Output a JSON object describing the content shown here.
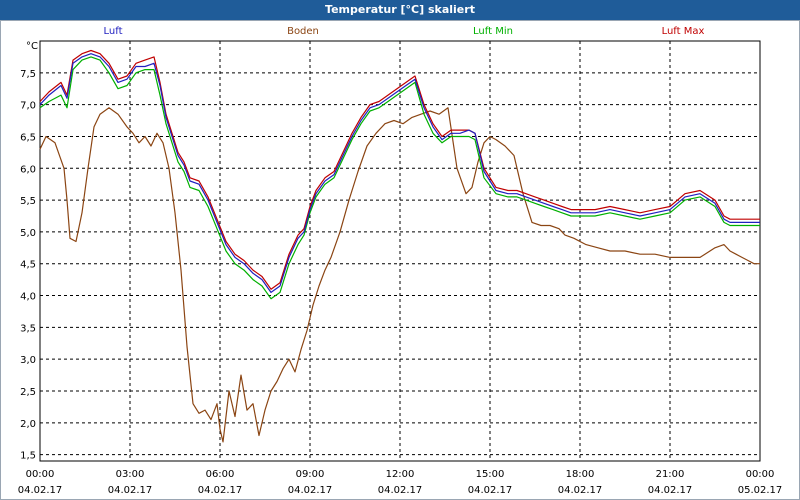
{
  "window": {
    "title": "Temperatur [°C] skaliert"
  },
  "chart_data": {
    "type": "line",
    "title": "Temperatur [°C] skaliert",
    "ylabel": "°C",
    "xlabel": "",
    "ylim": [
      1.4,
      8.0
    ],
    "xlim": [
      0,
      24
    ],
    "grid": true,
    "legend_position": "top",
    "y_ticks": [
      1.5,
      2.0,
      2.5,
      3.0,
      3.5,
      4.0,
      4.5,
      5.0,
      5.5,
      6.0,
      6.5,
      7.0,
      7.5
    ],
    "y_tick_labels": [
      "1,5",
      "2,0",
      "2,5",
      "3,0",
      "3,5",
      "4,0",
      "4,5",
      "5,0",
      "5,5",
      "6,0",
      "6,5",
      "7,0",
      "7,5"
    ],
    "x_ticks": [
      0,
      3,
      6,
      9,
      12,
      15,
      18,
      21,
      24
    ],
    "x_tick_times": [
      "00:00",
      "03:00",
      "06:00",
      "09:00",
      "12:00",
      "15:00",
      "18:00",
      "21:00",
      "00:00"
    ],
    "x_tick_dates": [
      "04.02.17",
      "04.02.17",
      "04.02.17",
      "04.02.17",
      "04.02.17",
      "04.02.17",
      "04.02.17",
      "04.02.17",
      "05.02.17"
    ],
    "series": [
      {
        "name": "Luft",
        "color": "#2020c0",
        "x": [
          0,
          0.3,
          0.7,
          0.9,
          1.1,
          1.4,
          1.7,
          2.0,
          2.3,
          2.6,
          2.9,
          3.2,
          3.5,
          3.8,
          4.0,
          4.2,
          4.4,
          4.6,
          4.8,
          5.0,
          5.3,
          5.6,
          5.9,
          6.2,
          6.5,
          6.8,
          7.1,
          7.4,
          7.7,
          8.0,
          8.3,
          8.6,
          8.8,
          9.0,
          9.2,
          9.5,
          9.8,
          10.1,
          10.4,
          10.7,
          11.0,
          11.3,
          11.6,
          11.9,
          12.2,
          12.5,
          12.8,
          13.1,
          13.4,
          13.7,
          14.0,
          14.3,
          14.5,
          14.8,
          15.2,
          15.6,
          15.9,
          16.2,
          16.5,
          16.8,
          17.1,
          17.4,
          17.7,
          18.0,
          18.5,
          19.0,
          19.5,
          20.0,
          20.5,
          21.0,
          21.5,
          22.0,
          22.5,
          22.8,
          23.0,
          23.2,
          23.4,
          23.6,
          23.8,
          24.0
        ],
        "values": [
          7.0,
          7.15,
          7.3,
          7.1,
          7.65,
          7.75,
          7.8,
          7.75,
          7.6,
          7.35,
          7.4,
          7.6,
          7.6,
          7.65,
          7.3,
          6.8,
          6.5,
          6.2,
          6.05,
          5.8,
          5.75,
          5.5,
          5.15,
          4.8,
          4.6,
          4.5,
          4.35,
          4.25,
          4.05,
          4.15,
          4.6,
          4.9,
          5.0,
          5.35,
          5.6,
          5.8,
          5.9,
          6.2,
          6.5,
          6.75,
          6.95,
          7.0,
          7.1,
          7.2,
          7.3,
          7.4,
          6.95,
          6.65,
          6.45,
          6.55,
          6.55,
          6.6,
          6.55,
          5.95,
          5.65,
          5.6,
          5.6,
          5.55,
          5.5,
          5.45,
          5.4,
          5.35,
          5.3,
          5.3,
          5.3,
          5.35,
          5.3,
          5.25,
          5.3,
          5.35,
          5.55,
          5.6,
          5.45,
          5.2,
          5.15,
          5.15,
          5.15,
          5.15,
          5.15,
          5.15
        ]
      },
      {
        "name": "Boden",
        "color": "#8b4513",
        "x": [
          0,
          0.2,
          0.5,
          0.8,
          0.9,
          1.0,
          1.2,
          1.4,
          1.6,
          1.8,
          2.0,
          2.3,
          2.6,
          2.9,
          3.1,
          3.3,
          3.5,
          3.7,
          3.9,
          4.1,
          4.3,
          4.5,
          4.7,
          4.9,
          5.1,
          5.3,
          5.5,
          5.7,
          5.9,
          6.0,
          6.1,
          6.3,
          6.5,
          6.7,
          6.9,
          7.1,
          7.3,
          7.5,
          7.7,
          7.9,
          8.1,
          8.3,
          8.5,
          8.7,
          8.9,
          9.1,
          9.3,
          9.5,
          9.7,
          10.0,
          10.3,
          10.6,
          10.9,
          11.2,
          11.5,
          11.8,
          12.1,
          12.4,
          12.7,
          13.0,
          13.3,
          13.6,
          13.9,
          14.2,
          14.4,
          14.6,
          14.8,
          15.0,
          15.2,
          15.5,
          15.8,
          16.1,
          16.4,
          16.7,
          17.0,
          17.3,
          17.5,
          17.8,
          18.2,
          18.6,
          19.0,
          19.5,
          20.0,
          20.5,
          21.0,
          21.5,
          22.0,
          22.5,
          22.8,
          23.0,
          23.2,
          23.4,
          23.6,
          23.8,
          24.0
        ],
        "values": [
          6.3,
          6.5,
          6.4,
          6.0,
          5.5,
          4.9,
          4.85,
          5.3,
          6.0,
          6.65,
          6.85,
          6.95,
          6.85,
          6.65,
          6.55,
          6.4,
          6.5,
          6.35,
          6.55,
          6.4,
          6.0,
          5.3,
          4.4,
          3.2,
          2.3,
          2.15,
          2.2,
          2.05,
          2.3,
          1.9,
          1.7,
          2.5,
          2.1,
          2.75,
          2.2,
          2.3,
          1.8,
          2.2,
          2.5,
          2.65,
          2.85,
          3.0,
          2.8,
          3.15,
          3.45,
          3.85,
          4.15,
          4.4,
          4.6,
          5.0,
          5.5,
          5.95,
          6.35,
          6.55,
          6.7,
          6.75,
          6.7,
          6.8,
          6.85,
          6.9,
          6.85,
          6.95,
          6.0,
          5.6,
          5.7,
          6.1,
          6.4,
          6.5,
          6.45,
          6.35,
          6.2,
          5.6,
          5.15,
          5.1,
          5.1,
          5.05,
          4.95,
          4.9,
          4.8,
          4.75,
          4.7,
          4.7,
          4.65,
          4.65,
          4.6,
          4.6,
          4.6,
          4.75,
          4.8,
          4.7,
          4.65,
          4.6,
          4.55,
          4.5,
          4.5
        ]
      },
      {
        "name": "Luft Min",
        "color": "#00b000",
        "x": [
          0,
          0.3,
          0.7,
          0.9,
          1.1,
          1.4,
          1.7,
          2.0,
          2.3,
          2.6,
          2.9,
          3.2,
          3.5,
          3.8,
          4.0,
          4.2,
          4.4,
          4.6,
          4.8,
          5.0,
          5.3,
          5.6,
          5.9,
          6.2,
          6.5,
          6.8,
          7.1,
          7.4,
          7.7,
          8.0,
          8.3,
          8.6,
          8.8,
          9.0,
          9.2,
          9.5,
          9.8,
          10.1,
          10.4,
          10.7,
          11.0,
          11.3,
          11.6,
          11.9,
          12.2,
          12.5,
          12.8,
          13.1,
          13.4,
          13.7,
          14.0,
          14.3,
          14.5,
          14.8,
          15.2,
          15.6,
          15.9,
          16.2,
          16.5,
          16.8,
          17.1,
          17.4,
          17.7,
          18.0,
          18.5,
          19.0,
          19.5,
          20.0,
          20.5,
          21.0,
          21.5,
          22.0,
          22.5,
          22.8,
          23.0,
          23.2,
          23.4,
          23.6,
          23.8,
          24.0
        ],
        "values": [
          6.95,
          7.05,
          7.15,
          6.95,
          7.55,
          7.7,
          7.75,
          7.7,
          7.5,
          7.25,
          7.3,
          7.5,
          7.55,
          7.55,
          7.15,
          6.7,
          6.4,
          6.1,
          5.95,
          5.7,
          5.65,
          5.4,
          5.05,
          4.7,
          4.5,
          4.4,
          4.25,
          4.15,
          3.95,
          4.05,
          4.5,
          4.8,
          4.95,
          5.3,
          5.55,
          5.75,
          5.85,
          6.15,
          6.45,
          6.7,
          6.9,
          6.95,
          7.05,
          7.15,
          7.25,
          7.35,
          6.85,
          6.55,
          6.4,
          6.5,
          6.5,
          6.5,
          6.45,
          5.85,
          5.6,
          5.55,
          5.55,
          5.5,
          5.45,
          5.4,
          5.35,
          5.3,
          5.25,
          5.25,
          5.25,
          5.3,
          5.25,
          5.2,
          5.25,
          5.3,
          5.5,
          5.55,
          5.4,
          5.15,
          5.1,
          5.1,
          5.1,
          5.1,
          5.1,
          5.1
        ]
      },
      {
        "name": "Luft Max",
        "color": "#c00000",
        "x": [
          0,
          0.3,
          0.7,
          0.9,
          1.1,
          1.4,
          1.7,
          2.0,
          2.3,
          2.6,
          2.9,
          3.2,
          3.5,
          3.8,
          4.0,
          4.2,
          4.4,
          4.6,
          4.8,
          5.0,
          5.3,
          5.6,
          5.9,
          6.2,
          6.5,
          6.8,
          7.1,
          7.4,
          7.7,
          8.0,
          8.3,
          8.6,
          8.8,
          9.0,
          9.2,
          9.5,
          9.8,
          10.1,
          10.4,
          10.7,
          11.0,
          11.3,
          11.6,
          11.9,
          12.2,
          12.5,
          12.8,
          13.1,
          13.4,
          13.7,
          14.0,
          14.3,
          14.5,
          14.8,
          15.2,
          15.6,
          15.9,
          16.2,
          16.5,
          16.8,
          17.1,
          17.4,
          17.7,
          18.0,
          18.5,
          19.0,
          19.5,
          20.0,
          20.5,
          21.0,
          21.5,
          22.0,
          22.5,
          22.8,
          23.0,
          23.2,
          23.4,
          23.6,
          23.8,
          24.0
        ],
        "values": [
          7.05,
          7.2,
          7.35,
          7.15,
          7.7,
          7.8,
          7.85,
          7.8,
          7.65,
          7.4,
          7.45,
          7.65,
          7.7,
          7.75,
          7.35,
          6.85,
          6.55,
          6.25,
          6.1,
          5.85,
          5.8,
          5.55,
          5.2,
          4.85,
          4.65,
          4.55,
          4.4,
          4.3,
          4.1,
          4.2,
          4.65,
          4.95,
          5.05,
          5.4,
          5.65,
          5.85,
          5.95,
          6.25,
          6.55,
          6.8,
          7.0,
          7.05,
          7.15,
          7.25,
          7.35,
          7.45,
          7.0,
          6.7,
          6.5,
          6.6,
          6.6,
          6.6,
          6.55,
          6.0,
          5.7,
          5.65,
          5.65,
          5.6,
          5.55,
          5.5,
          5.45,
          5.4,
          5.35,
          5.35,
          5.35,
          5.4,
          5.35,
          5.3,
          5.35,
          5.4,
          5.6,
          5.65,
          5.5,
          5.25,
          5.2,
          5.2,
          5.2,
          5.2,
          5.2,
          5.2
        ]
      }
    ]
  }
}
